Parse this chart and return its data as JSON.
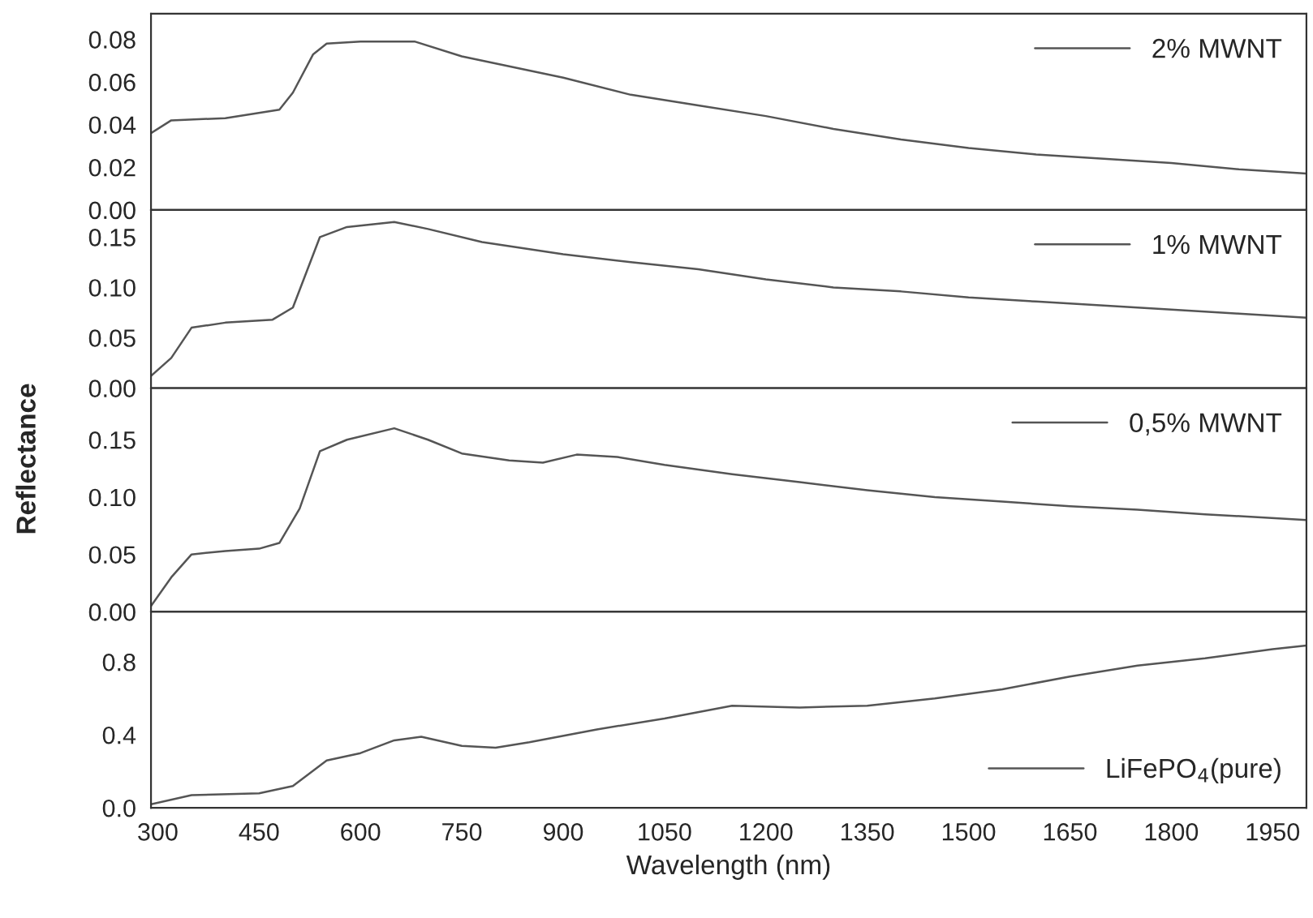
{
  "chart_data": [
    {
      "type": "line",
      "xlim": [
        290,
        2000
      ],
      "ylim": [
        0,
        0.092
      ],
      "xticks": [
        300,
        450,
        600,
        750,
        900,
        1050,
        1200,
        1350,
        1500,
        1650,
        1800,
        1950
      ],
      "yticks": [
        {
          "value": 0,
          "label": "0.00"
        },
        {
          "value": 0.02,
          "label": "0.02"
        },
        {
          "value": 0.04,
          "label": "0.04"
        },
        {
          "value": 0.06,
          "label": "0.06"
        },
        {
          "value": 0.08,
          "label": "0.08"
        }
      ],
      "tick_labels": "y",
      "legend": "top right",
      "grid": false,
      "series": [
        {
          "name": "2% MWNT",
          "color": "#555555",
          "x": [
            290,
            320,
            400,
            480,
            500,
            530,
            550,
            600,
            680,
            750,
            900,
            1000,
            1100,
            1200,
            1300,
            1400,
            1500,
            1600,
            1700,
            1800,
            1900,
            2000
          ],
          "values": [
            0.036,
            0.042,
            0.043,
            0.047,
            0.055,
            0.073,
            0.078,
            0.079,
            0.079,
            0.072,
            0.062,
            0.054,
            0.049,
            0.044,
            0.038,
            0.033,
            0.029,
            0.026,
            0.024,
            0.022,
            0.019,
            0.017
          ]
        }
      ]
    },
    {
      "type": "line",
      "xlim": [
        290,
        2000
      ],
      "ylim": [
        0,
        0.177
      ],
      "xticks": [
        300,
        450,
        600,
        750,
        900,
        1050,
        1200,
        1350,
        1500,
        1650,
        1800,
        1950
      ],
      "yticks": [
        {
          "value": 0,
          "label": "0.00"
        },
        {
          "value": 0.05,
          "label": "0.05"
        },
        {
          "value": 0.1,
          "label": "0.10"
        },
        {
          "value": 0.15,
          "label": "0.15"
        }
      ],
      "tick_labels": "y",
      "legend": "top right",
      "grid": false,
      "ylabel": "Reflectance",
      "series": [
        {
          "name": "1% MWNT",
          "color": "#555555",
          "x": [
            290,
            320,
            350,
            400,
            470,
            500,
            540,
            580,
            650,
            700,
            780,
            900,
            1000,
            1100,
            1200,
            1300,
            1400,
            1500,
            1600,
            1700,
            1800,
            1900,
            2000
          ],
          "values": [
            0.012,
            0.03,
            0.06,
            0.065,
            0.068,
            0.08,
            0.15,
            0.16,
            0.165,
            0.158,
            0.145,
            0.133,
            0.125,
            0.118,
            0.108,
            0.1,
            0.096,
            0.09,
            0.086,
            0.082,
            0.078,
            0.074,
            0.07
          ]
        }
      ]
    },
    {
      "type": "line",
      "xlim": [
        290,
        2000
      ],
      "ylim": [
        0,
        0.195
      ],
      "xticks": [
        300,
        450,
        600,
        750,
        900,
        1050,
        1200,
        1350,
        1500,
        1650,
        1800,
        1950
      ],
      "yticks": [
        {
          "value": 0,
          "label": "0.00"
        },
        {
          "value": 0.05,
          "label": "0.05"
        },
        {
          "value": 0.1,
          "label": "0.10"
        },
        {
          "value": 0.15,
          "label": "0.15"
        }
      ],
      "tick_labels": "y",
      "legend": "top right",
      "grid": false,
      "series": [
        {
          "name": "0,5% MWNT",
          "color": "#555555",
          "x": [
            290,
            320,
            350,
            400,
            450,
            480,
            510,
            540,
            580,
            650,
            700,
            750,
            820,
            870,
            920,
            980,
            1050,
            1150,
            1250,
            1350,
            1450,
            1550,
            1650,
            1750,
            1850,
            2000
          ],
          "values": [
            0.005,
            0.03,
            0.05,
            0.053,
            0.055,
            0.06,
            0.09,
            0.14,
            0.15,
            0.16,
            0.15,
            0.138,
            0.132,
            0.13,
            0.137,
            0.135,
            0.128,
            0.12,
            0.113,
            0.106,
            0.1,
            0.096,
            0.092,
            0.089,
            0.085,
            0.08
          ]
        }
      ]
    },
    {
      "type": "line",
      "xlim": [
        290,
        2000
      ],
      "ylim": [
        0,
        1.075
      ],
      "xticks": [
        300,
        450,
        600,
        750,
        900,
        1050,
        1200,
        1350,
        1500,
        1650,
        1800,
        1950
      ],
      "yticks": [
        {
          "value": 0,
          "label": "0.0"
        },
        {
          "value": 0.4,
          "label": "0.4"
        },
        {
          "value": 0.8,
          "label": "0.8"
        }
      ],
      "legend": "bottom right",
      "grid": false,
      "xlabel": "Wavelength (nm)",
      "series": [
        {
          "name": "LiFePO$_{4}$(pure)",
          "color": "#555555",
          "x": [
            290,
            350,
            450,
            500,
            550,
            600,
            650,
            690,
            750,
            800,
            850,
            950,
            1050,
            1150,
            1250,
            1350,
            1450,
            1550,
            1650,
            1750,
            1850,
            1950,
            2000
          ],
          "values": [
            0.02,
            0.07,
            0.08,
            0.12,
            0.26,
            0.3,
            0.37,
            0.39,
            0.34,
            0.33,
            0.36,
            0.43,
            0.49,
            0.56,
            0.55,
            0.56,
            0.6,
            0.65,
            0.72,
            0.78,
            0.82,
            0.87,
            0.89
          ]
        }
      ]
    }
  ]
}
